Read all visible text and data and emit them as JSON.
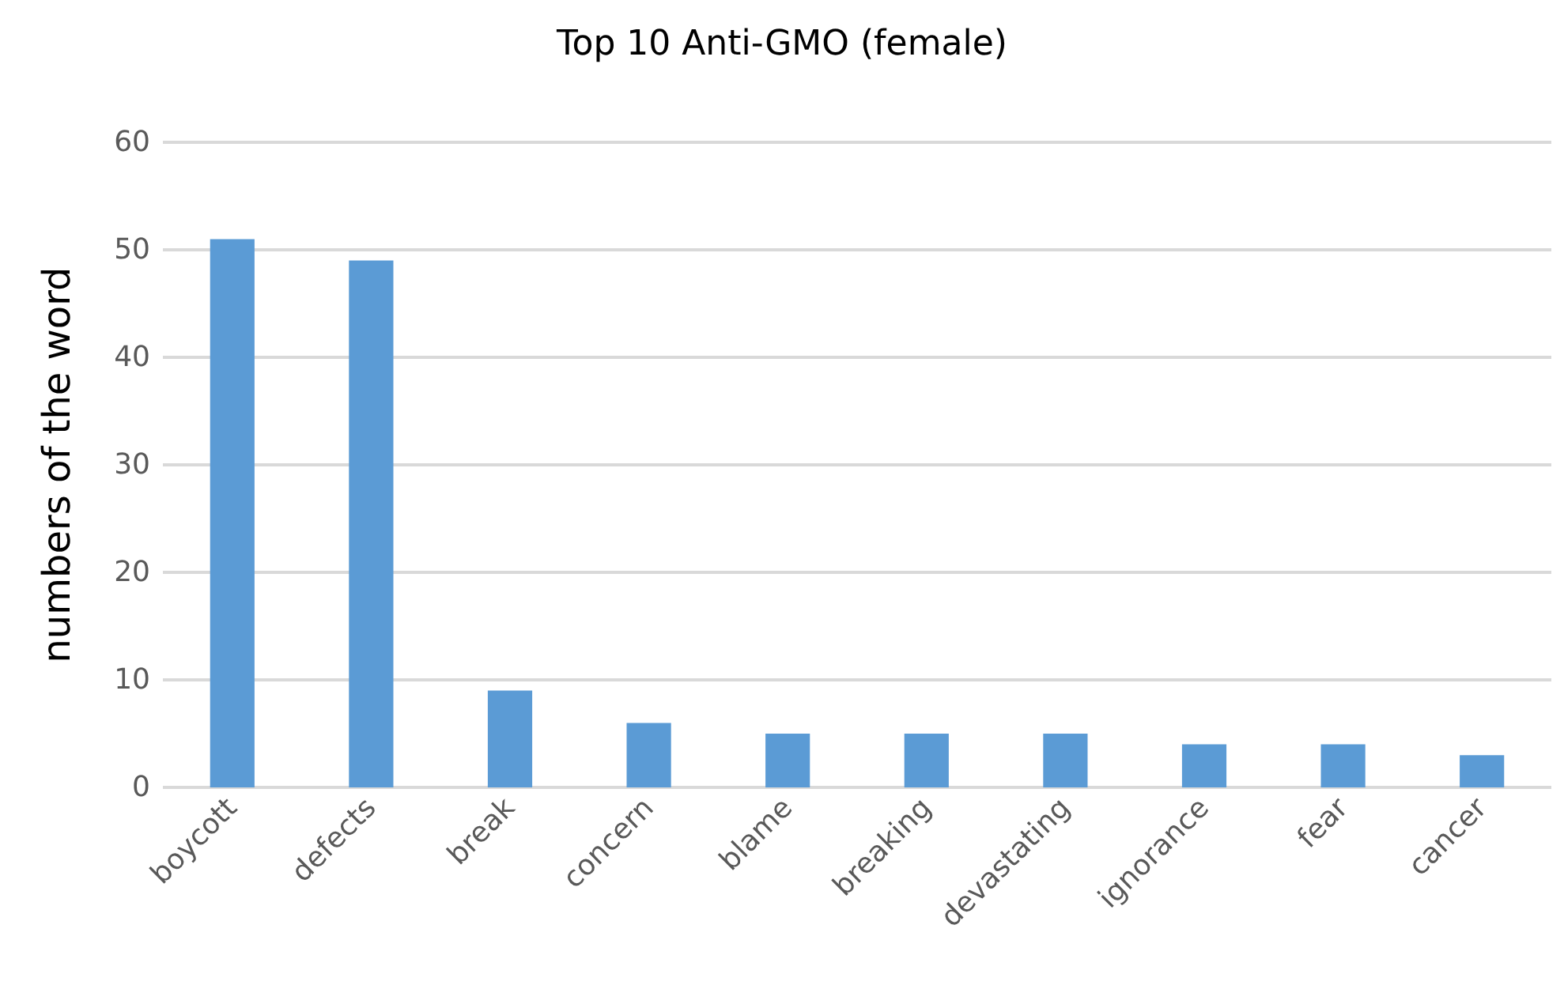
{
  "chart_data": {
    "type": "bar",
    "title": "Top 10 Anti-GMO (female)",
    "ylabel": "numbers of the word",
    "categories": [
      "boycott",
      "defects",
      "break",
      "concern",
      "blame",
      "breaking",
      "devastating",
      "ignorance",
      "fear",
      "cancer"
    ],
    "values": [
      51,
      49,
      9,
      6,
      5,
      5,
      5,
      4,
      4,
      3
    ],
    "color": "#5b9bd5",
    "ylim": [
      0,
      60
    ],
    "yticks": [
      0,
      10,
      20,
      30,
      40,
      50,
      60
    ],
    "grid": "y"
  }
}
